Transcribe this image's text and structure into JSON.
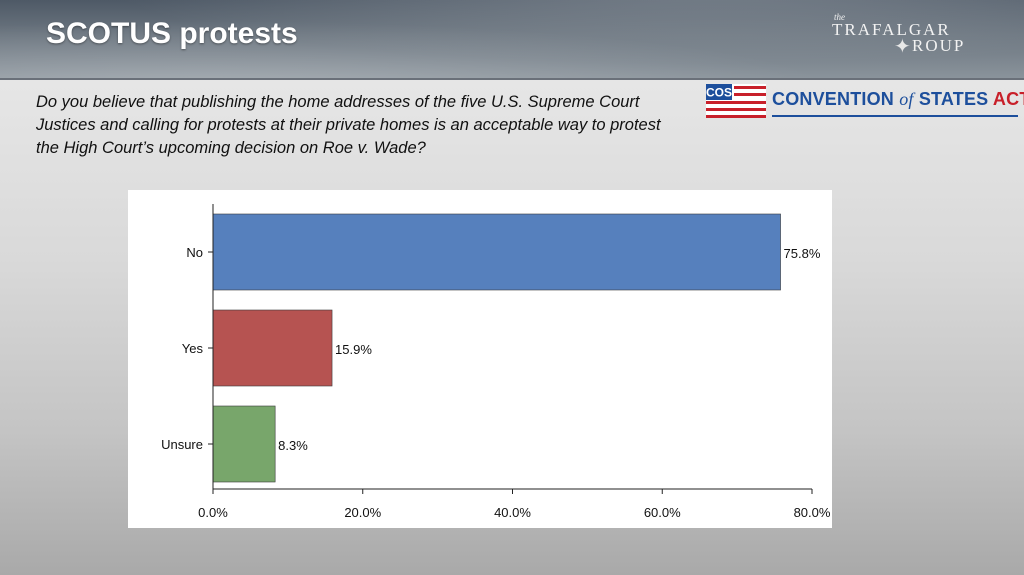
{
  "header": {
    "title": "SCOTUS protests"
  },
  "brand": {
    "trafalgar": {
      "small": "the",
      "line1": "TRAFAL",
      "line1b": "GAR",
      "line2": "ROUP"
    },
    "cos": {
      "badge": "COS",
      "name_part1": "CONVENTION",
      "name_of": "of",
      "name_part2": "STATES",
      "name_part3": "ACTION"
    }
  },
  "question": "Do you believe that publishing the home addresses of the five U.S. Supreme Court Justices and calling for protests at their private homes is an acceptable way to protest the High Court’s upcoming decision on Roe v. Wade?",
  "colors": {
    "no": "#5680bd",
    "yes": "#b65351",
    "unsure": "#78a66b",
    "cos_blue": "#1d4f9c",
    "cos_red": "#c8202a"
  },
  "chart_data": {
    "type": "bar",
    "orientation": "horizontal",
    "categories": [
      "No",
      "Yes",
      "Unsure"
    ],
    "values": [
      75.8,
      15.9,
      8.3
    ],
    "value_labels": [
      "75.8%",
      "15.9%",
      "8.3%"
    ],
    "bar_colors": [
      "#5680bd",
      "#b65351",
      "#78a66b"
    ],
    "xlim": [
      0,
      80
    ],
    "xticks": [
      0,
      20,
      40,
      60,
      80
    ],
    "xtick_labels": [
      "0.0%",
      "20.0%",
      "40.0%",
      "60.0%",
      "80.0%"
    ],
    "grid": false,
    "legend": "none"
  }
}
